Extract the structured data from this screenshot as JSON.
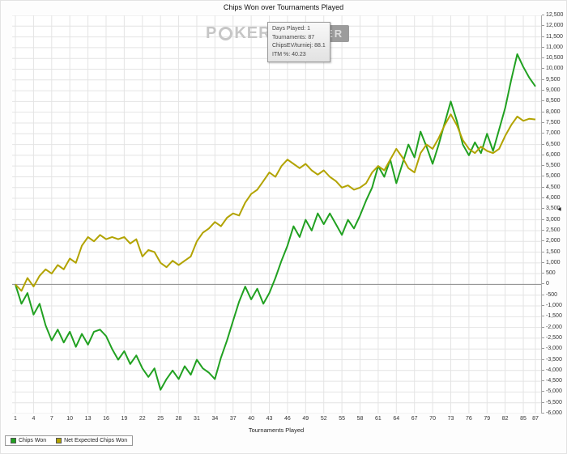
{
  "title": "Chips Won over Tournaments Played",
  "watermark": {
    "part1": "P",
    "part2": "KER",
    "box_text": "TRACKER"
  },
  "tooltip": {
    "lines": [
      "Days Played: 1",
      "Tournaments: 87",
      "ChipsEV/turniej: 88.1",
      "ITM %: 40.23"
    ]
  },
  "icons": {
    "scroll_arrow": "◀",
    "poker_chip": "poker-chip-circle"
  },
  "colors": {
    "chips_won": "#21a121",
    "net_expected": "#b2a300",
    "grid": "#e4e4e4",
    "zero_line": "#888888",
    "axis": "#aaaaaa"
  },
  "chart_data": {
    "type": "line",
    "title": "Chips Won over Tournaments Played",
    "xlabel": "Tournaments Played",
    "ylabel": "",
    "grid": true,
    "legend_position": "bottom-left",
    "ylim": [
      -6000,
      12500
    ],
    "y_step": 500,
    "x_ticks": [
      1,
      4,
      7,
      10,
      13,
      16,
      19,
      22,
      25,
      28,
      31,
      34,
      37,
      40,
      43,
      46,
      49,
      52,
      55,
      58,
      61,
      64,
      67,
      70,
      73,
      76,
      79,
      82,
      85,
      87
    ],
    "x": [
      1,
      2,
      3,
      4,
      5,
      6,
      7,
      8,
      9,
      10,
      11,
      12,
      13,
      14,
      15,
      16,
      17,
      18,
      19,
      20,
      21,
      22,
      23,
      24,
      25,
      26,
      27,
      28,
      29,
      30,
      31,
      32,
      33,
      34,
      35,
      36,
      37,
      38,
      39,
      40,
      41,
      42,
      43,
      44,
      45,
      46,
      47,
      48,
      49,
      50,
      51,
      52,
      53,
      54,
      55,
      56,
      57,
      58,
      59,
      60,
      61,
      62,
      63,
      64,
      65,
      66,
      67,
      68,
      69,
      70,
      71,
      72,
      73,
      74,
      75,
      76,
      77,
      78,
      79,
      80,
      81,
      82,
      83,
      84,
      85,
      86,
      87
    ],
    "series": [
      {
        "name": "Chips Won",
        "color": "#21a121",
        "values": [
          0,
          -900,
          -400,
          -1400,
          -900,
          -1900,
          -2600,
          -2100,
          -2700,
          -2200,
          -2900,
          -2300,
          -2800,
          -2200,
          -2100,
          -2400,
          -3000,
          -3500,
          -3100,
          -3700,
          -3300,
          -3900,
          -4300,
          -3900,
          -4900,
          -4400,
          -4000,
          -4400,
          -3800,
          -4200,
          -3500,
          -3900,
          -4100,
          -4400,
          -3400,
          -2600,
          -1700,
          -800,
          -100,
          -700,
          -200,
          -900,
          -400,
          300,
          1100,
          1800,
          2700,
          2200,
          3000,
          2500,
          3300,
          2800,
          3300,
          2800,
          2300,
          3000,
          2600,
          3200,
          3900,
          4500,
          5500,
          5000,
          5800,
          4700,
          5600,
          6500,
          5900,
          7100,
          6400,
          5600,
          6500,
          7500,
          8500,
          7600,
          6500,
          6000,
          6600,
          6100,
          7000,
          6200,
          7200,
          8200,
          9500,
          10700,
          10100,
          9600,
          9200
        ]
      },
      {
        "name": "Net Expected Chips Won",
        "color": "#b2a300",
        "values": [
          0,
          -300,
          300,
          -100,
          400,
          700,
          500,
          900,
          700,
          1200,
          1000,
          1800,
          2200,
          2000,
          2300,
          2100,
          2200,
          2100,
          2200,
          1900,
          2100,
          1300,
          1600,
          1500,
          1000,
          800,
          1100,
          900,
          1100,
          1300,
          2000,
          2400,
          2600,
          2900,
          2700,
          3100,
          3300,
          3200,
          3800,
          4200,
          4400,
          4800,
          5200,
          5000,
          5500,
          5800,
          5600,
          5400,
          5600,
          5300,
          5100,
          5300,
          5000,
          4800,
          4500,
          4600,
          4400,
          4500,
          4700,
          5200,
          5500,
          5300,
          5800,
          6300,
          5900,
          5400,
          5200,
          6100,
          6500,
          6300,
          6800,
          7400,
          7900,
          7400,
          6700,
          6300,
          6100,
          6400,
          6200,
          6100,
          6300,
          6900,
          7400,
          7800,
          7600,
          7700,
          7665
        ]
      }
    ]
  }
}
